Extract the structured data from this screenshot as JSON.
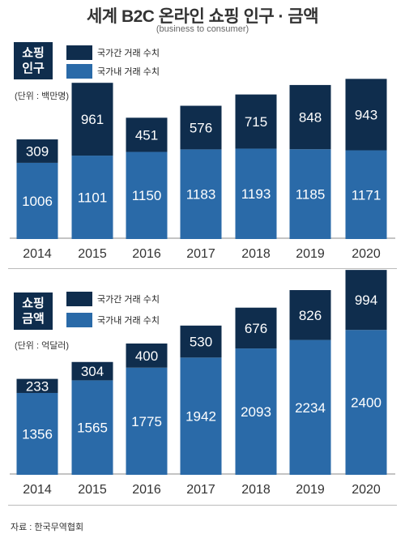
{
  "title": "세계 B2C 온라인 쇼핑 인구 · 금액",
  "subtitle": "(business to consumer)",
  "source": "자료 : 한국무역협회",
  "colors": {
    "domestic": "#2a6aa8",
    "cross_border": "#0f2d4d",
    "badge": "#0f2d4d"
  },
  "chart_data": [
    {
      "type": "bar",
      "stacked": true,
      "badge": [
        "쇼핑",
        "인구"
      ],
      "unit": "(단위 : 백만명)",
      "categories": [
        "2014",
        "2015",
        "2016",
        "2017",
        "2018",
        "2019",
        "2020"
      ],
      "series": [
        {
          "name": "국가내 거래 수치",
          "values": [
            1006,
            1101,
            1150,
            1183,
            1193,
            1185,
            1171
          ]
        },
        {
          "name": "국가간 거래 수치",
          "values": [
            309,
            961,
            451,
            576,
            715,
            848,
            943
          ]
        }
      ],
      "legend_position": "top-left",
      "grid": false
    },
    {
      "type": "bar",
      "stacked": true,
      "badge": [
        "쇼핑",
        "금액"
      ],
      "unit": "(단위 : 억달러)",
      "categories": [
        "2014",
        "2015",
        "2016",
        "2017",
        "2018",
        "2019",
        "2020"
      ],
      "series": [
        {
          "name": "국가내 거래 수치",
          "values": [
            1356,
            1565,
            1775,
            1942,
            2093,
            2234,
            2400
          ]
        },
        {
          "name": "국가간 거래 수치",
          "values": [
            233,
            304,
            400,
            530,
            676,
            826,
            994
          ]
        }
      ],
      "legend_position": "top-left",
      "grid": false
    }
  ]
}
